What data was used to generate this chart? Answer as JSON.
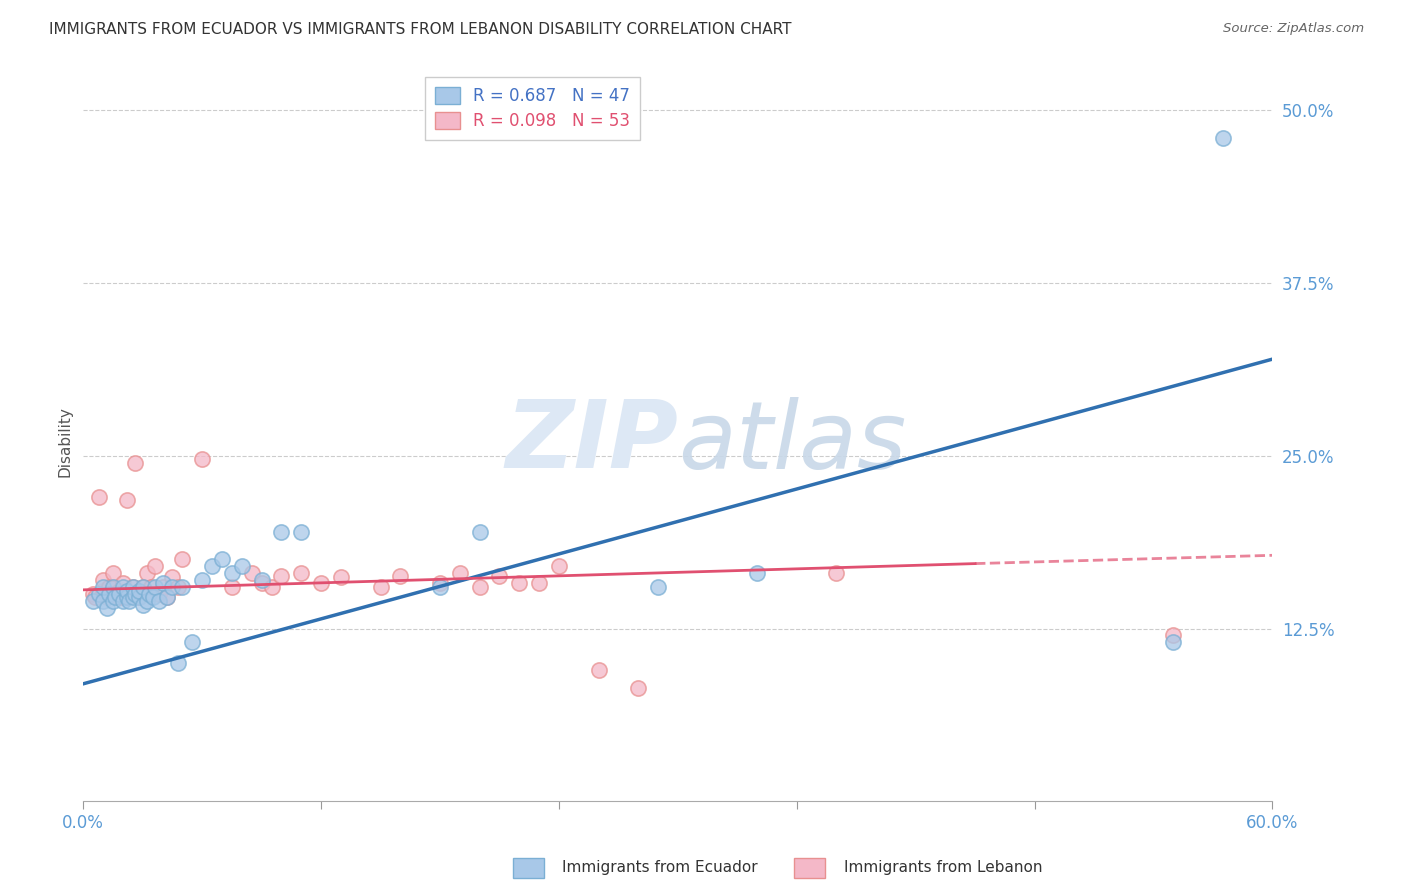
{
  "title": "IMMIGRANTS FROM ECUADOR VS IMMIGRANTS FROM LEBANON DISABILITY CORRELATION CHART",
  "source": "Source: ZipAtlas.com",
  "ylabel": "Disability",
  "x_min": 0.0,
  "x_max": 0.6,
  "y_min": 0.0,
  "y_max": 0.52,
  "x_ticks": [
    0.0,
    0.12,
    0.24,
    0.36,
    0.48,
    0.6
  ],
  "x_tick_labels": [
    "0.0%",
    "",
    "",
    "",
    "",
    "60.0%"
  ],
  "y_ticks": [
    0.125,
    0.25,
    0.375,
    0.5
  ],
  "y_tick_labels": [
    "12.5%",
    "25.0%",
    "37.5%",
    "50.0%"
  ],
  "legend_R_ecuador": "R = 0.687",
  "legend_N_ecuador": "N = 47",
  "legend_R_lebanon": "R = 0.098",
  "legend_N_lebanon": "N = 53",
  "ecuador_color": "#a8c8e8",
  "ecuador_edge_color": "#7bafd4",
  "lebanon_color": "#f4b8c8",
  "lebanon_edge_color": "#e89090",
  "ecuador_line_color": "#3070b0",
  "lebanon_line_color": "#e05070",
  "watermark_color": "#dde8f5",
  "ecuador_scatter_x": [
    0.005,
    0.008,
    0.01,
    0.01,
    0.012,
    0.013,
    0.015,
    0.015,
    0.016,
    0.018,
    0.02,
    0.02,
    0.022,
    0.022,
    0.023,
    0.025,
    0.025,
    0.026,
    0.028,
    0.028,
    0.03,
    0.03,
    0.032,
    0.033,
    0.035,
    0.036,
    0.038,
    0.04,
    0.042,
    0.045,
    0.048,
    0.05,
    0.055,
    0.06,
    0.065,
    0.07,
    0.075,
    0.08,
    0.09,
    0.1,
    0.11,
    0.18,
    0.2,
    0.29,
    0.34,
    0.55,
    0.575
  ],
  "ecuador_scatter_y": [
    0.145,
    0.15,
    0.145,
    0.155,
    0.14,
    0.15,
    0.145,
    0.155,
    0.148,
    0.15,
    0.145,
    0.155,
    0.148,
    0.152,
    0.145,
    0.148,
    0.155,
    0.15,
    0.148,
    0.152,
    0.142,
    0.155,
    0.145,
    0.15,
    0.148,
    0.155,
    0.145,
    0.158,
    0.148,
    0.155,
    0.1,
    0.155,
    0.115,
    0.16,
    0.17,
    0.175,
    0.165,
    0.17,
    0.16,
    0.195,
    0.195,
    0.155,
    0.195,
    0.155,
    0.165,
    0.115,
    0.48
  ],
  "lebanon_scatter_x": [
    0.005,
    0.006,
    0.008,
    0.01,
    0.01,
    0.012,
    0.013,
    0.014,
    0.015,
    0.015,
    0.016,
    0.018,
    0.018,
    0.02,
    0.02,
    0.022,
    0.022,
    0.024,
    0.025,
    0.026,
    0.028,
    0.03,
    0.032,
    0.034,
    0.036,
    0.038,
    0.04,
    0.042,
    0.045,
    0.048,
    0.05,
    0.06,
    0.075,
    0.085,
    0.09,
    0.095,
    0.1,
    0.11,
    0.12,
    0.13,
    0.15,
    0.16,
    0.18,
    0.19,
    0.2,
    0.21,
    0.22,
    0.23,
    0.24,
    0.26,
    0.28,
    0.38,
    0.55
  ],
  "lebanon_scatter_y": [
    0.15,
    0.148,
    0.22,
    0.152,
    0.16,
    0.148,
    0.155,
    0.15,
    0.155,
    0.165,
    0.15,
    0.148,
    0.152,
    0.148,
    0.158,
    0.148,
    0.218,
    0.15,
    0.155,
    0.245,
    0.148,
    0.155,
    0.165,
    0.155,
    0.17,
    0.15,
    0.155,
    0.148,
    0.162,
    0.155,
    0.175,
    0.248,
    0.155,
    0.165,
    0.158,
    0.155,
    0.163,
    0.165,
    0.158,
    0.162,
    0.155,
    0.163,
    0.158,
    0.165,
    0.155,
    0.163,
    0.158,
    0.158,
    0.17,
    0.095,
    0.082,
    0.165,
    0.12
  ],
  "ecuador_line_x0": 0.0,
  "ecuador_line_x1": 0.6,
  "ecuador_line_y0": 0.085,
  "ecuador_line_y1": 0.32,
  "lebanon_line_x0": 0.0,
  "lebanon_line_x1": 0.45,
  "lebanon_line_x1_dash": 0.6,
  "lebanon_line_y0": 0.153,
  "lebanon_line_y1": 0.172,
  "lebanon_line_y1_dash": 0.178
}
